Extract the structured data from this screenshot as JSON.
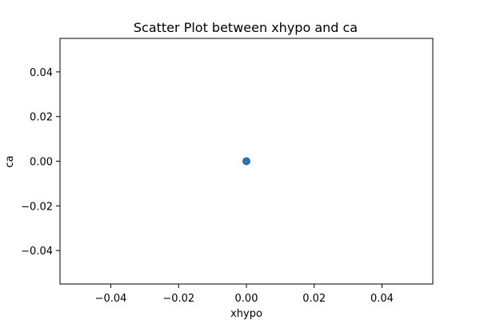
{
  "chart_data": {
    "type": "scatter",
    "title": "Scatter Plot between xhypo and ca",
    "xlabel": "xhypo",
    "ylabel": "ca",
    "xlim": [
      -0.055,
      0.055
    ],
    "ylim": [
      -0.055,
      0.055
    ],
    "x_ticks": [
      -0.04,
      -0.02,
      0.0,
      0.02,
      0.04
    ],
    "y_ticks": [
      -0.04,
      -0.02,
      0.0,
      0.02,
      0.04
    ],
    "x_tick_labels": [
      "−0.04",
      "−0.02",
      "0.00",
      "0.02",
      "0.04"
    ],
    "y_tick_labels": [
      "−0.04",
      "−0.02",
      "0.00",
      "0.02",
      "0.04"
    ],
    "grid": false,
    "marker_color": "#1f77b4",
    "marker_edge_color": "#1a5f91",
    "points": [
      {
        "x": 0,
        "y": 0
      },
      {
        "x": 0,
        "y": 0
      },
      {
        "x": 0,
        "y": 0
      }
    ]
  }
}
